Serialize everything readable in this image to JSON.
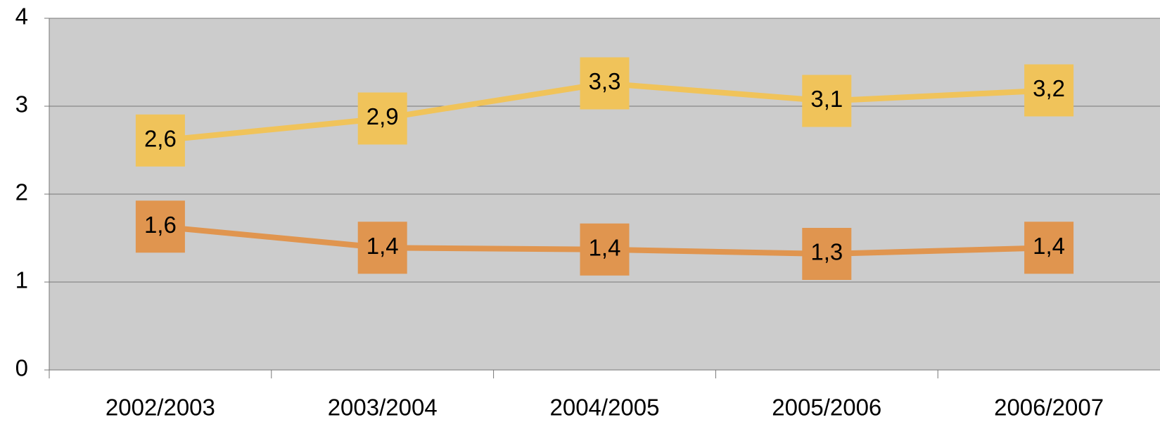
{
  "chart_data": {
    "type": "line",
    "categories": [
      "2002/2003",
      "2003/2004",
      "2004/2005",
      "2005/2006",
      "2006/2007"
    ],
    "series": [
      {
        "color": "#f0c35a",
        "values": [
          2.61,
          2.86,
          3.26,
          3.06,
          3.18
        ],
        "value_labels": [
          "2,6",
          "2,9",
          "3,3",
          "3,1",
          "3,2"
        ]
      },
      {
        "color": "#e0954f",
        "values": [
          1.63,
          1.39,
          1.37,
          1.32,
          1.39
        ],
        "value_labels": [
          "1,6",
          "1,4",
          "1,4",
          "1,3",
          "1,4"
        ]
      }
    ],
    "ylim": [
      0,
      4
    ],
    "yticks": [
      0,
      1,
      2,
      3,
      4
    ],
    "grid": true,
    "background": "#cccccc"
  }
}
